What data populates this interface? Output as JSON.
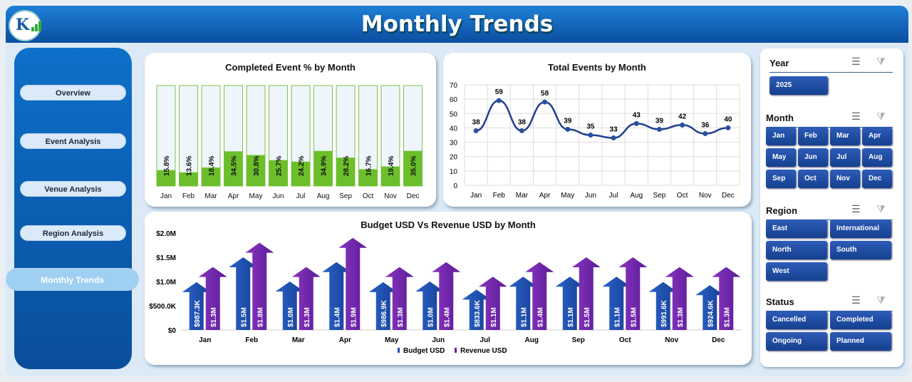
{
  "header": {
    "title": "Monthly Trends",
    "logo_text": "K"
  },
  "nav": [
    {
      "label": "Overview"
    },
    {
      "label": "Event  Analysis"
    },
    {
      "label": "Venue Analysis"
    },
    {
      "label": "Region Analysis"
    },
    {
      "label": "Monthly Trends",
      "active": true
    }
  ],
  "months": [
    "Jan",
    "Feb",
    "Mar",
    "Apr",
    "May",
    "Jun",
    "Jul",
    "Aug",
    "Sep",
    "Oct",
    "Nov",
    "Dec"
  ],
  "chart_data": [
    {
      "type": "bar",
      "title": "Completed Event % by Month",
      "categories": [
        "Jan",
        "Feb",
        "Mar",
        "Apr",
        "May",
        "Jun",
        "Jul",
        "Aug",
        "Sep",
        "Oct",
        "Nov",
        "Dec"
      ],
      "values": [
        15.8,
        13.6,
        18.4,
        34.5,
        30.8,
        25.7,
        24.2,
        34.9,
        28.2,
        16.7,
        19.4,
        35.0
      ],
      "labels": [
        "15.8%",
        "13.6%",
        "18.4%",
        "34.5%",
        "30.8%",
        "25.7%",
        "24.2%",
        "34.9%",
        "28.2%",
        "16.7%",
        "19.4%",
        "35.0%"
      ],
      "ylim": [
        0,
        100
      ],
      "color": "#6cbf2a"
    },
    {
      "type": "line",
      "title": "Total Events by Month",
      "categories": [
        "Jan",
        "Feb",
        "Mar",
        "Apr",
        "May",
        "Jun",
        "Jul",
        "Aug",
        "Sep",
        "Oct",
        "Nov",
        "Dec"
      ],
      "values": [
        38,
        59,
        38,
        58,
        39,
        35,
        33,
        43,
        39,
        42,
        36,
        40
      ],
      "ylim": [
        0,
        70
      ],
      "yticks": [
        "0",
        "10",
        "20",
        "30",
        "40",
        "50",
        "60",
        "70"
      ],
      "grid": true,
      "color": "#1f3f8f"
    },
    {
      "type": "bar",
      "title": "Budget USD Vs Revenue USD by Month",
      "categories": [
        "Jan",
        "Feb",
        "Mar",
        "Apr",
        "May",
        "Jun",
        "Jul",
        "Aug",
        "Sep",
        "Oct",
        "Nov",
        "Dec"
      ],
      "ylim": [
        0,
        2000000
      ],
      "yticks": [
        "$0",
        "$500.0K",
        "$1.0M",
        "$1.5M",
        "$2.0M"
      ],
      "legend": "bottom",
      "series": [
        {
          "name": "Budget USD",
          "color": "#1f4fb0",
          "values": [
            987300,
            1500000,
            1000000,
            1400000,
            986900,
            1000000,
            833600,
            1100000,
            1100000,
            1100000,
            991600,
            924600
          ],
          "labels": [
            "$987.3K",
            "$1.5M",
            "$1.0M",
            "$1.4M",
            "$986.9K",
            "$1.0M",
            "$833.6K",
            "$1.1M",
            "$1.1M",
            "$1.1M",
            "$991.6K",
            "$924.6K"
          ]
        },
        {
          "name": "Revenue USD",
          "color": "#6a22a8",
          "values": [
            1300000,
            1800000,
            1300000,
            1900000,
            1300000,
            1400000,
            1100000,
            1400000,
            1500000,
            1500000,
            1300000,
            1300000
          ],
          "labels": [
            "$1.3M",
            "$1.8M",
            "$1.3M",
            "$1.9M",
            "$1.3M",
            "$1.4M",
            "$1.1M",
            "$1.4M",
            "$1.5M",
            "$1.5M",
            "$1.3M",
            "$1.3M"
          ]
        }
      ]
    }
  ],
  "slicers": {
    "year": {
      "title": "Year",
      "items": [
        "2025"
      ]
    },
    "month": {
      "title": "Month",
      "items": [
        "Jan",
        "Feb",
        "Mar",
        "Apr",
        "May",
        "Jun",
        "Jul",
        "Aug",
        "Sep",
        "Oct",
        "Nov",
        "Dec"
      ]
    },
    "region": {
      "title": "Region",
      "items": [
        "East",
        "International",
        "North",
        "South",
        "West"
      ]
    },
    "status": {
      "title": "Status",
      "items": [
        "Cancelled",
        "Completed",
        "Ongoing",
        "Planned"
      ]
    }
  }
}
